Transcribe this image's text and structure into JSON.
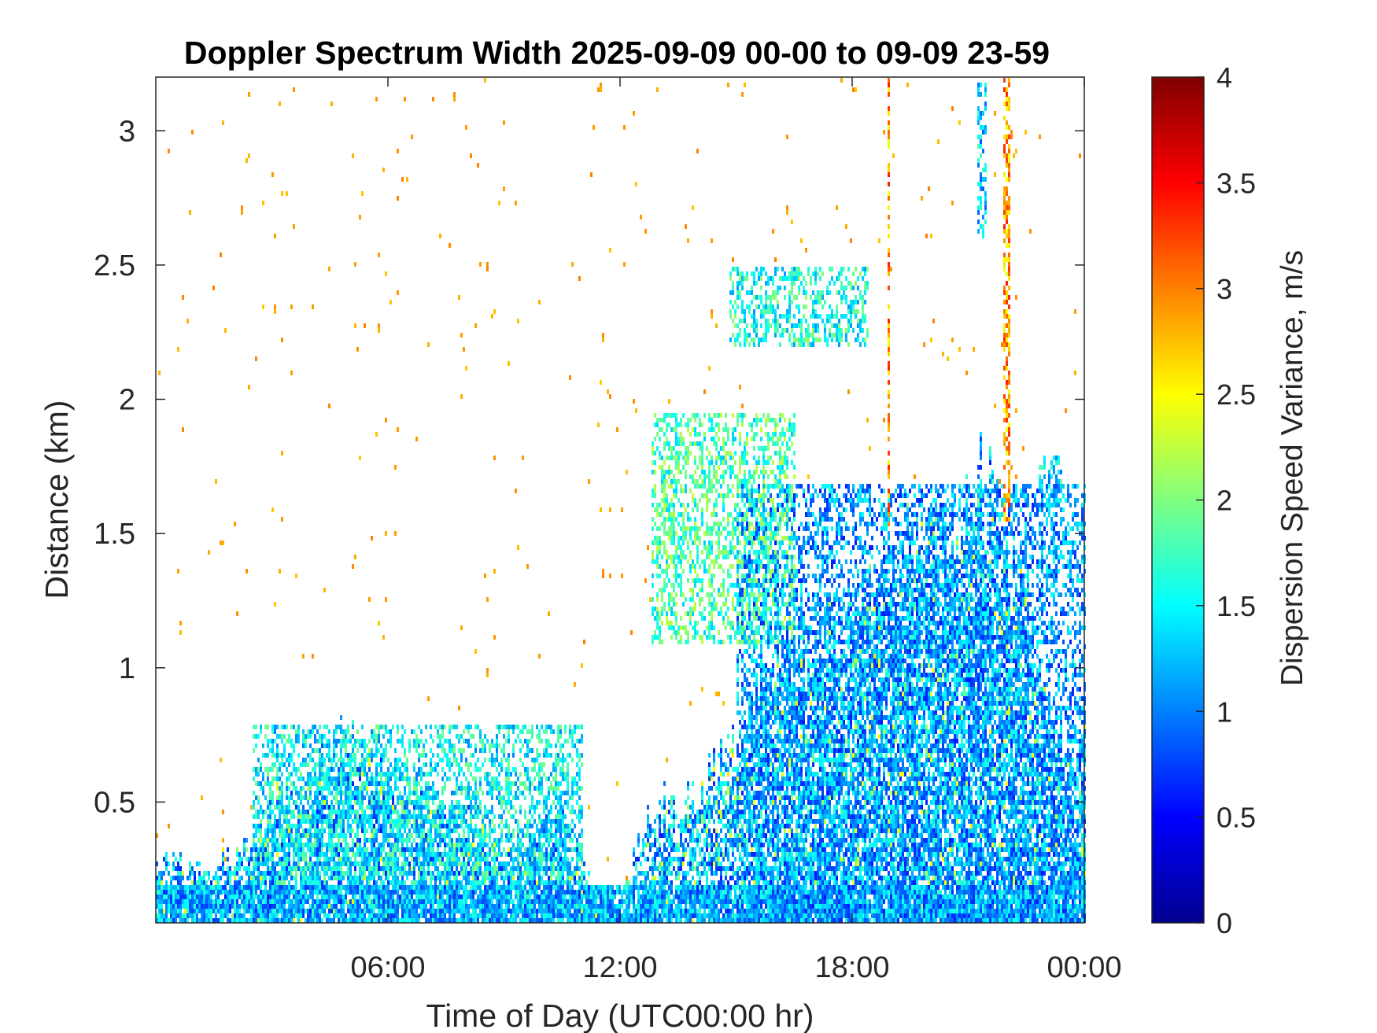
{
  "chart_data": {
    "type": "heatmap",
    "title": "Doppler Spectrum Width 2025-09-09 00-00 to 09-09 23-59",
    "xlabel": "Time of Day (UTC00:00 hr)",
    "ylabel": "Distance (km)",
    "colorbar_label": "Dispersion Speed Variance, m/s",
    "colormap": "jet",
    "colormap_stops": [
      "#00008f",
      "#0000ff",
      "#0080ff",
      "#00ffff",
      "#80ff80",
      "#ffff00",
      "#ff8000",
      "#ff0000",
      "#800000"
    ],
    "xlim": [
      0,
      24
    ],
    "ylim": [
      0.05,
      3.2
    ],
    "clim": [
      0,
      4
    ],
    "xticks": [
      6,
      12,
      18,
      24
    ],
    "xtick_labels": [
      "06:00",
      "12:00",
      "18:00",
      "00:00"
    ],
    "yticks": [
      0.5,
      1,
      1.5,
      2,
      2.5,
      3
    ],
    "ytick_labels": [
      "0.5",
      "1",
      "1.5",
      "2",
      "2.5",
      "3"
    ],
    "cticks": [
      0,
      0.5,
      1,
      1.5,
      2,
      2.5,
      3,
      3.5,
      4
    ],
    "ctick_labels": [
      "0",
      "0.5",
      "1",
      "1.5",
      "2",
      "2.5",
      "3",
      "3.5",
      "4"
    ],
    "grid": false,
    "legend": "colorbar-right",
    "signal_top_km_by_hour": [
      [
        0,
        0.3
      ],
      [
        0.5,
        0.3
      ],
      [
        1,
        0.25
      ],
      [
        1.5,
        0.3
      ],
      [
        2,
        0.3
      ],
      [
        2.5,
        0.4
      ],
      [
        3,
        0.5
      ],
      [
        3.5,
        0.55
      ],
      [
        4,
        0.65
      ],
      [
        4.5,
        0.72
      ],
      [
        5,
        0.75
      ],
      [
        5.5,
        0.72
      ],
      [
        6,
        0.62
      ],
      [
        6.5,
        0.55
      ],
      [
        7,
        0.52
      ],
      [
        7.5,
        0.5
      ],
      [
        8,
        0.5
      ],
      [
        8.5,
        0.42
      ],
      [
        9,
        0.3
      ],
      [
        9.5,
        0.35
      ],
      [
        10,
        0.45
      ],
      [
        10.5,
        0.5
      ],
      [
        11,
        0.3
      ],
      [
        11.5,
        0.15
      ],
      [
        12,
        0.15
      ],
      [
        12.5,
        0.4
      ],
      [
        13,
        0.55
      ],
      [
        13.5,
        0.5
      ],
      [
        14,
        0.55
      ],
      [
        14.5,
        0.65
      ],
      [
        15,
        0.75
      ],
      [
        15.5,
        0.95
      ],
      [
        16,
        1.0
      ],
      [
        16.5,
        1.05
      ],
      [
        17,
        1.1
      ],
      [
        17.5,
        1.15
      ],
      [
        18,
        1.2
      ],
      [
        18.5,
        1.25
      ],
      [
        19,
        1.4
      ],
      [
        19.5,
        1.45
      ],
      [
        20,
        1.5
      ],
      [
        20.5,
        1.45
      ],
      [
        21,
        1.6
      ],
      [
        21.5,
        1.7
      ],
      [
        22,
        1.35
      ],
      [
        22.5,
        1.25
      ],
      [
        23,
        0.8
      ],
      [
        23.5,
        0.7
      ],
      [
        24,
        0.85
      ]
    ],
    "features": [
      {
        "name": "lower blue band",
        "hours": [
          0,
          24
        ],
        "km": [
          0.05,
          0.2
        ],
        "value": 1.2
      },
      {
        "name": "morning layer",
        "hours": [
          2.5,
          11
        ],
        "km": [
          0.2,
          0.8
        ],
        "value": 1.5
      },
      {
        "name": "afternoon convective layer",
        "hours": [
          15,
          24
        ],
        "km": [
          0.05,
          1.7
        ],
        "value": 1.1
      },
      {
        "name": "elevated plume",
        "hours": [
          12.8,
          16.5
        ],
        "km": [
          1.1,
          1.95
        ],
        "value": 1.8
      },
      {
        "name": "upper streaks",
        "hours": [
          14.8,
          18.4
        ],
        "km": [
          2.2,
          2.5
        ],
        "value": 1.6
      },
      {
        "name": "orange column",
        "hours": [
          21.85,
          22.05
        ],
        "km": [
          1.55,
          3.2
        ],
        "value": 2.9
      },
      {
        "name": "thin orange line",
        "hours": [
          18.9,
          18.96
        ],
        "km": [
          1.5,
          3.2
        ],
        "value": 2.9
      },
      {
        "name": "blue top column",
        "hours": [
          21.2,
          21.45
        ],
        "km": [
          2.6,
          3.2
        ],
        "value": 1.3
      },
      {
        "name": "late-evening patch",
        "hours": [
          22.8,
          23.4
        ],
        "km": [
          1.6,
          1.8
        ],
        "value": 1.4
      }
    ]
  }
}
